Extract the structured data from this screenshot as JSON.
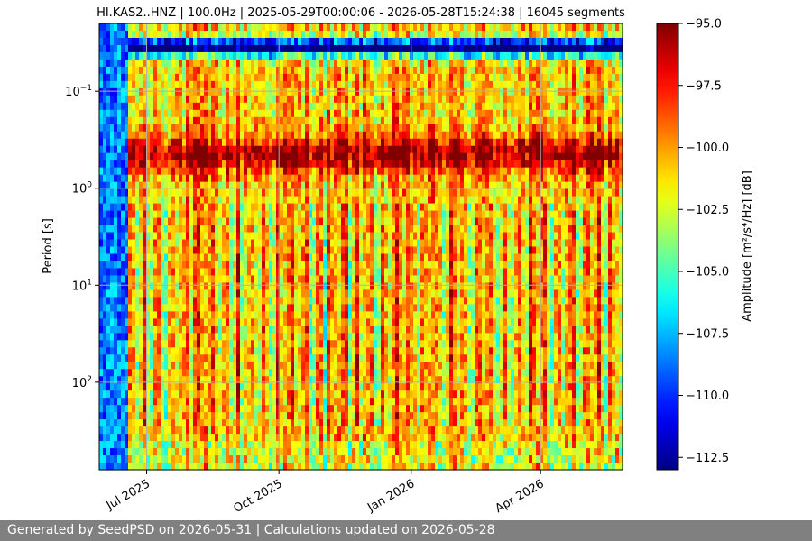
{
  "chart_data": {
    "type": "heatmap",
    "title": "HI.KAS2..HNZ | 100.0Hz | 2025-05-29T00:00:06 - 2026-05-28T15:24:38 | 16045 segments",
    "ylabel": "Period [s]",
    "xlabel": "",
    "x_range": [
      "2025-05-29",
      "2026-05-28"
    ],
    "x_ticks": [
      {
        "date": "2025-07-01",
        "label": "Jul 2025"
      },
      {
        "date": "2025-10-01",
        "label": "Oct 2025"
      },
      {
        "date": "2026-01-01",
        "label": "Jan 2026"
      },
      {
        "date": "2026-04-01",
        "label": "Apr 2026"
      }
    ],
    "y_scale": "log",
    "y_inverted": true,
    "y_range": [
      0.02,
      800
    ],
    "y_ticks": [
      {
        "value": 0.1,
        "base": "10",
        "exp": "−1"
      },
      {
        "value": 1,
        "base": "10",
        "exp": "0"
      },
      {
        "value": 10,
        "base": "10",
        "exp": "1"
      },
      {
        "value": 100,
        "base": "10",
        "exp": "2"
      }
    ],
    "grid": true,
    "colorbar": {
      "label": "Amplitude [m²/s⁴/Hz] [dB]",
      "colormap": "jet",
      "range": [
        -113.0,
        -95.0
      ],
      "ticks": [
        {
          "value": -95.0,
          "label": "−95.0"
        },
        {
          "value": -97.5,
          "label": "−97.5"
        },
        {
          "value": -100.0,
          "label": "−100.0"
        },
        {
          "value": -102.5,
          "label": "−102.5"
        },
        {
          "value": -105.0,
          "label": "−105.0"
        },
        {
          "value": -107.5,
          "label": "−107.5"
        },
        {
          "value": -110.0,
          "label": "−110.0"
        },
        {
          "value": -112.5,
          "label": "−112.5"
        }
      ]
    }
  },
  "footer": {
    "text": "Generated by SeedPSD on 2026-05-31 | Calculations updated on 2026-05-28",
    "background": "#808080"
  }
}
